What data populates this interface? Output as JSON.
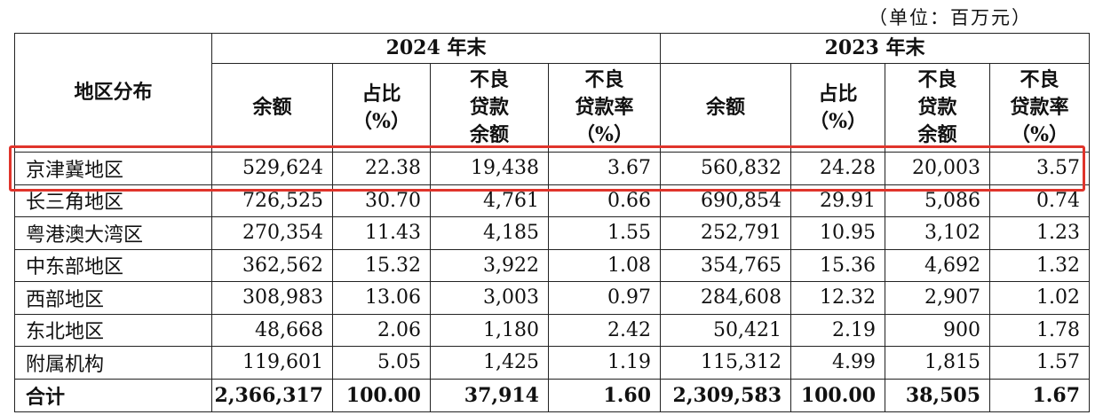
{
  "unit_note": "（单位：百万元）",
  "header": {
    "region_col": "地区分布",
    "year_2024": "2024 年末",
    "year_2023": "2023 年末",
    "col_balance": "余额",
    "col_share": [
      "占比",
      "（%）"
    ],
    "col_npl_balance": [
      "不良",
      "贷款",
      "余额"
    ],
    "col_npl_ratio": [
      "不良",
      "贷款率",
      "（%）"
    ]
  },
  "rows": [
    {
      "region": "京津冀地区",
      "y2024": [
        "529,624",
        "22.38",
        "19,438",
        "3.67"
      ],
      "y2023": [
        "560,832",
        "24.28",
        "20,003",
        "3.57"
      ]
    },
    {
      "region": "长三角地区",
      "y2024": [
        "726,525",
        "30.70",
        "4,761",
        "0.66"
      ],
      "y2023": [
        "690,854",
        "29.91",
        "5,086",
        "0.74"
      ]
    },
    {
      "region": "粤港澳大湾区",
      "y2024": [
        "270,354",
        "11.43",
        "4,185",
        "1.55"
      ],
      "y2023": [
        "252,791",
        "10.95",
        "3,102",
        "1.23"
      ]
    },
    {
      "region": "中东部地区",
      "y2024": [
        "362,562",
        "15.32",
        "3,922",
        "1.08"
      ],
      "y2023": [
        "354,765",
        "15.36",
        "4,692",
        "1.32"
      ]
    },
    {
      "region": "西部地区",
      "y2024": [
        "308,983",
        "13.06",
        "3,003",
        "0.97"
      ],
      "y2023": [
        "284,608",
        "12.32",
        "2,907",
        "1.02"
      ]
    },
    {
      "region": "东北地区",
      "y2024": [
        "48,668",
        "2.06",
        "1,180",
        "2.42"
      ],
      "y2023": [
        "50,421",
        "2.19",
        "900",
        "1.78"
      ]
    },
    {
      "region": "附属机构",
      "y2024": [
        "119,601",
        "5.05",
        "1,425",
        "1.19"
      ],
      "y2023": [
        "115,312",
        "4.99",
        "1,815",
        "1.57"
      ]
    }
  ],
  "total": {
    "region": "合计",
    "y2024": [
      "2,366,317",
      "100.00",
      "37,914",
      "1.60"
    ],
    "y2023": [
      "2,309,583",
      "100.00",
      "38,505",
      "1.67"
    ]
  },
  "highlight_color": "#e0342b"
}
